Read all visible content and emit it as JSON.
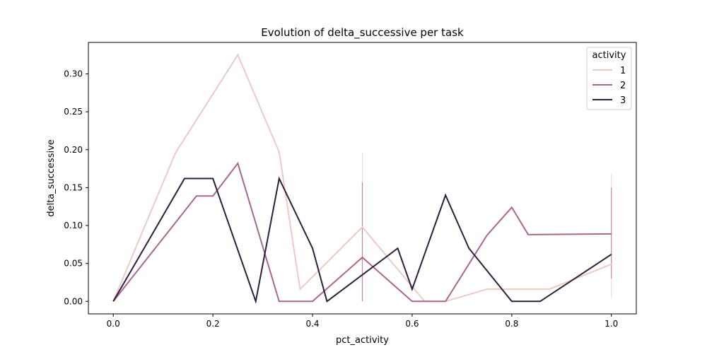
{
  "chart_data": {
    "type": "line",
    "title": "Evolution of delta_successive per task",
    "xlabel": "pct_activity",
    "ylabel": "delta_successive",
    "xlim": [
      -0.05,
      1.05
    ],
    "ylim": [
      -0.0165,
      0.3415
    ],
    "grid": false,
    "xticks": [
      0.0,
      0.2,
      0.4,
      0.6,
      0.8,
      1.0
    ],
    "xtick_labels": [
      "0.0",
      "0.2",
      "0.4",
      "0.6",
      "0.8",
      "1.0"
    ],
    "yticks": [
      0.0,
      0.05,
      0.1,
      0.15,
      0.2,
      0.25,
      0.3
    ],
    "ytick_labels": [
      "0.00",
      "0.05",
      "0.10",
      "0.15",
      "0.20",
      "0.25",
      "0.30"
    ],
    "legend": {
      "title": "activity",
      "placement": "top-right"
    },
    "series": [
      {
        "name": "1",
        "color": "#eccbc3",
        "x": [
          0.0,
          0.125,
          0.25,
          0.333,
          0.375,
          0.5,
          0.625,
          0.667,
          0.75,
          0.875,
          1.0
        ],
        "y": [
          0.0,
          0.196,
          0.325,
          0.197,
          0.016,
          0.098,
          0.0,
          0.0,
          0.016,
          0.016,
          0.049
        ]
      },
      {
        "name": "2",
        "color": "#a6688f",
        "x": [
          0.0,
          0.167,
          0.2,
          0.25,
          0.333,
          0.4,
          0.5,
          0.6,
          0.667,
          0.75,
          0.8,
          0.833,
          1.0
        ],
        "y": [
          0.0,
          0.139,
          0.139,
          0.182,
          0.0,
          0.0,
          0.058,
          0.0,
          0.0,
          0.087,
          0.124,
          0.088,
          0.089
        ]
      },
      {
        "name": "3",
        "color": "#2e1e3c",
        "x": [
          0.0,
          0.143,
          0.2,
          0.286,
          0.333,
          0.4,
          0.429,
          0.571,
          0.6,
          0.667,
          0.714,
          0.8,
          0.857,
          1.0
        ],
        "y": [
          0.0,
          0.162,
          0.162,
          0.0,
          0.162,
          0.07,
          0.0,
          0.07,
          0.016,
          0.14,
          0.07,
          0.0,
          0.0,
          0.062
        ]
      }
    ],
    "error_bars": [
      {
        "series": "1",
        "x": 0.5,
        "low": 0.0,
        "high": 0.196
      },
      {
        "series": "1",
        "x": 1.0,
        "low": 0.005,
        "high": 0.168
      },
      {
        "series": "2",
        "x": 0.5,
        "low": 0.0,
        "high": 0.157
      },
      {
        "series": "2",
        "x": 1.0,
        "low": 0.03,
        "high": 0.15
      }
    ]
  }
}
